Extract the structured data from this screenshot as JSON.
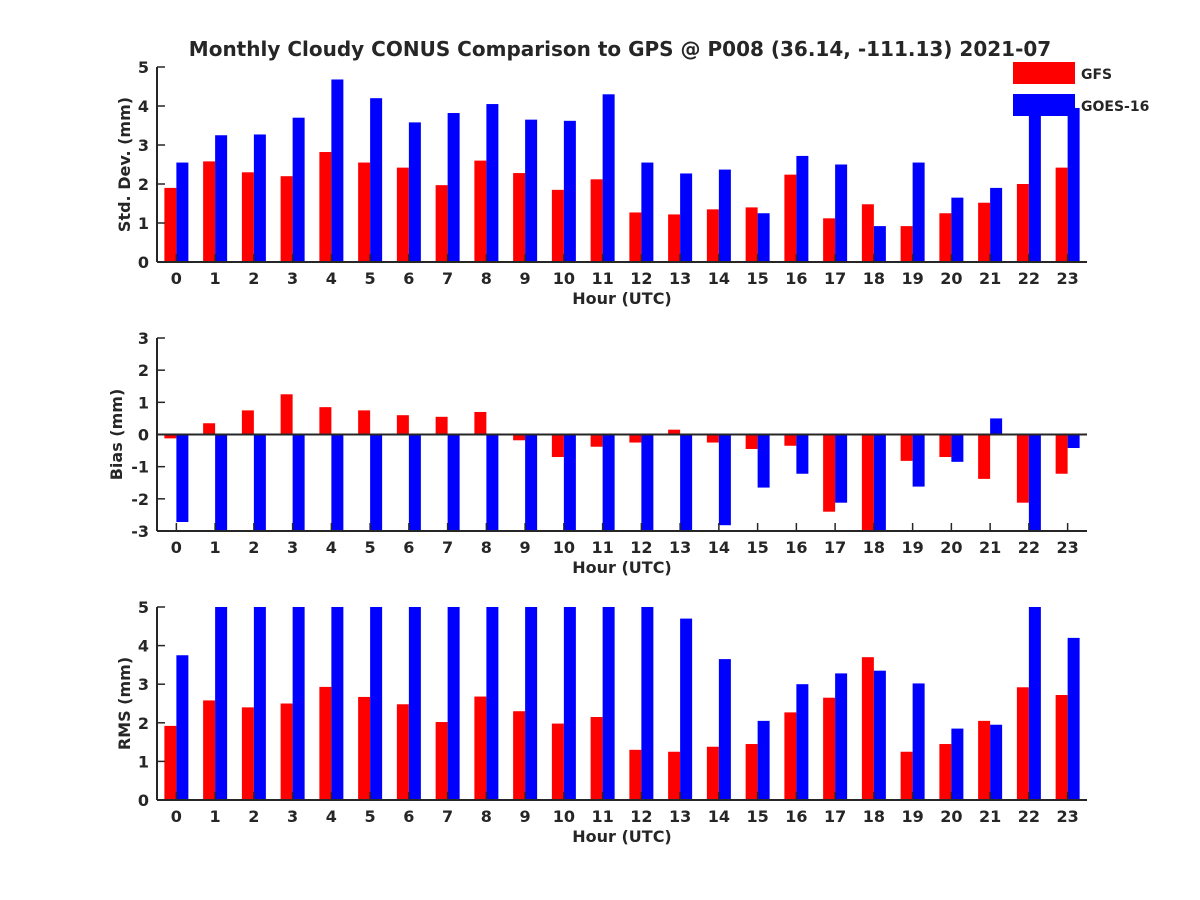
{
  "chart_data": [
    {
      "type": "bar",
      "title": "Monthly Cloudy CONUS Comparison to GPS @ P008 (36.14, -111.13) 2021-07",
      "xlabel": "Hour (UTC)",
      "ylabel": "Std. Dev. (mm)",
      "ylim": [
        0,
        5
      ],
      "yticks": [
        0,
        1,
        2,
        3,
        4,
        5
      ],
      "categories": [
        "0",
        "1",
        "2",
        "3",
        "4",
        "5",
        "6",
        "7",
        "8",
        "9",
        "10",
        "11",
        "12",
        "13",
        "14",
        "15",
        "16",
        "17",
        "18",
        "19",
        "20",
        "21",
        "22",
        "23"
      ],
      "series": [
        {
          "name": "GFS",
          "color": "#ff0000",
          "values": [
            1.9,
            2.58,
            2.3,
            2.2,
            2.82,
            2.55,
            2.42,
            1.97,
            2.6,
            2.28,
            1.85,
            2.12,
            1.27,
            1.22,
            1.35,
            1.4,
            2.24,
            1.12,
            1.48,
            0.92,
            1.25,
            1.52,
            2.0,
            2.42
          ]
        },
        {
          "name": "GOES-16",
          "color": "#0000ff",
          "values": [
            2.55,
            3.25,
            3.27,
            3.7,
            4.68,
            4.2,
            3.58,
            3.82,
            4.05,
            3.65,
            3.62,
            4.3,
            2.55,
            2.27,
            2.37,
            1.25,
            2.72,
            2.5,
            0.92,
            2.55,
            1.65,
            1.9,
            4.15,
            3.95
          ]
        }
      ],
      "legend": {
        "position": "top-right",
        "entries": [
          "GFS",
          "GOES-16"
        ]
      }
    },
    {
      "type": "bar",
      "xlabel": "Hour (UTC)",
      "ylabel": "Bias (mm)",
      "ylim": [
        -3,
        3
      ],
      "yticks": [
        -3,
        -2,
        -1,
        0,
        1,
        2,
        3
      ],
      "categories": [
        "0",
        "1",
        "2",
        "3",
        "4",
        "5",
        "6",
        "7",
        "8",
        "9",
        "10",
        "11",
        "12",
        "13",
        "14",
        "15",
        "16",
        "17",
        "18",
        "19",
        "20",
        "21",
        "22",
        "23"
      ],
      "series": [
        {
          "name": "GFS",
          "color": "#ff0000",
          "values": [
            -0.12,
            0.35,
            0.75,
            1.25,
            0.85,
            0.75,
            0.6,
            0.55,
            0.7,
            -0.18,
            -0.7,
            -0.38,
            -0.25,
            0.15,
            -0.25,
            -0.45,
            -0.35,
            -2.4,
            -3.0,
            -0.82,
            -0.7,
            -1.38,
            -2.12,
            -1.22
          ]
        },
        {
          "name": "GOES-16",
          "color": "#0000ff",
          "values": [
            -2.72,
            -3.0,
            -3.0,
            -3.0,
            -3.0,
            -3.0,
            -3.0,
            -3.0,
            -3.0,
            -3.0,
            -3.0,
            -3.0,
            -3.0,
            -3.0,
            -2.82,
            -1.65,
            -1.22,
            -2.12,
            -3.0,
            -1.62,
            -0.85,
            0.5,
            -3.0,
            -0.42
          ]
        }
      ]
    },
    {
      "type": "bar",
      "xlabel": "Hour (UTC)",
      "ylabel": "RMS (mm)",
      "ylim": [
        0,
        5
      ],
      "yticks": [
        0,
        1,
        2,
        3,
        4,
        5
      ],
      "categories": [
        "0",
        "1",
        "2",
        "3",
        "4",
        "5",
        "6",
        "7",
        "8",
        "9",
        "10",
        "11",
        "12",
        "13",
        "14",
        "15",
        "16",
        "17",
        "18",
        "19",
        "20",
        "21",
        "22",
        "23"
      ],
      "series": [
        {
          "name": "GFS",
          "color": "#ff0000",
          "values": [
            1.92,
            2.58,
            2.4,
            2.5,
            2.93,
            2.67,
            2.48,
            2.02,
            2.68,
            2.3,
            1.98,
            2.15,
            1.3,
            1.25,
            1.38,
            1.45,
            2.27,
            2.65,
            3.7,
            1.25,
            1.45,
            2.05,
            2.92,
            2.72
          ]
        },
        {
          "name": "GOES-16",
          "color": "#0000ff",
          "values": [
            3.75,
            5.0,
            5.0,
            5.0,
            5.0,
            5.0,
            5.0,
            5.0,
            5.0,
            5.0,
            5.0,
            5.0,
            5.0,
            4.7,
            3.65,
            2.05,
            3.0,
            3.28,
            3.35,
            3.02,
            1.85,
            1.95,
            5.0,
            4.2
          ]
        }
      ]
    }
  ]
}
